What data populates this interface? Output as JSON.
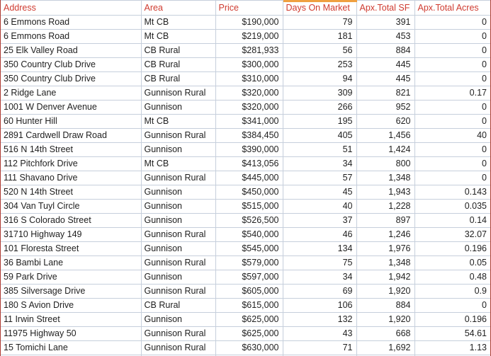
{
  "table": {
    "columns": [
      {
        "label": "Address",
        "align": "left"
      },
      {
        "label": "Area",
        "align": "left"
      },
      {
        "label": "Price",
        "align": "right"
      },
      {
        "label": "Days On Market",
        "align": "right",
        "accent_top": true
      },
      {
        "label": "Apx.Total SF",
        "align": "right"
      },
      {
        "label": "Apx.Total Acres",
        "align": "right"
      }
    ],
    "rows": [
      [
        "6 Emmons Road",
        "Mt CB",
        "$190,000",
        "79",
        "391",
        "0"
      ],
      [
        "6 Emmons Road",
        "Mt CB",
        "$219,000",
        "181",
        "453",
        "0"
      ],
      [
        "25 Elk Valley Road",
        "CB Rural",
        "$281,933",
        "56",
        "884",
        "0"
      ],
      [
        "350 Country Club Drive",
        "CB Rural",
        "$300,000",
        "253",
        "445",
        "0"
      ],
      [
        "350 Country Club Drive",
        "CB Rural",
        "$310,000",
        "94",
        "445",
        "0"
      ],
      [
        "2 Ridge Lane",
        "Gunnison Rural",
        "$320,000",
        "309",
        "821",
        "0.17"
      ],
      [
        "1001 W Denver Avenue",
        "Gunnison",
        "$320,000",
        "266",
        "952",
        "0"
      ],
      [
        "60 Hunter Hill",
        "Mt CB",
        "$341,000",
        "195",
        "620",
        "0"
      ],
      [
        "2891 Cardwell Draw Road",
        "Gunnison Rural",
        "$384,450",
        "405",
        "1,456",
        "40"
      ],
      [
        "516 N 14th Street",
        "Gunnison",
        "$390,000",
        "51",
        "1,424",
        "0"
      ],
      [
        "112 Pitchfork Drive",
        "Mt CB",
        "$413,056",
        "34",
        "800",
        "0"
      ],
      [
        "111 Shavano Drive",
        "Gunnison Rural",
        "$445,000",
        "57",
        "1,348",
        "0"
      ],
      [
        "520 N 14th Street",
        "Gunnison",
        "$450,000",
        "45",
        "1,943",
        "0.143"
      ],
      [
        "304 Van Tuyl Circle",
        "Gunnison",
        "$515,000",
        "40",
        "1,228",
        "0.035"
      ],
      [
        "316 S Colorado Street",
        "Gunnison",
        "$526,500",
        "37",
        "897",
        "0.14"
      ],
      [
        "31710 Highway 149",
        "Gunnison Rural",
        "$540,000",
        "46",
        "1,246",
        "32.07"
      ],
      [
        "101 Floresta Street",
        "Gunnison",
        "$545,000",
        "134",
        "1,976",
        "0.196"
      ],
      [
        "36 Bambi Lane",
        "Gunnison Rural",
        "$579,000",
        "75",
        "1,348",
        "0.05"
      ],
      [
        "59 Park Drive",
        "Gunnison",
        "$597,000",
        "34",
        "1,942",
        "0.48"
      ],
      [
        "385 Silversage Drive",
        "Gunnison Rural",
        "$605,000",
        "69",
        "1,920",
        "0.9"
      ],
      [
        "180 S Avion Drive",
        "CB Rural",
        "$615,000",
        "106",
        "884",
        "0"
      ],
      [
        "11 Irwin Street",
        "Gunnison",
        "$625,000",
        "132",
        "1,920",
        "0.196"
      ],
      [
        "11975 Highway 50",
        "Gunnison Rural",
        "$625,000",
        "43",
        "668",
        "54.61"
      ],
      [
        "15 Tomichi Lane",
        "Gunnison Rural",
        "$630,000",
        "71",
        "1,692",
        "1.13"
      ]
    ]
  },
  "colors": {
    "header_text": "#CF3B30",
    "body_text": "#1F1F1F",
    "gridline": "#C6CFDC",
    "accent_bar": "#EFA041",
    "frame_border": "#AD3B32",
    "background": "#FFFFFF"
  }
}
